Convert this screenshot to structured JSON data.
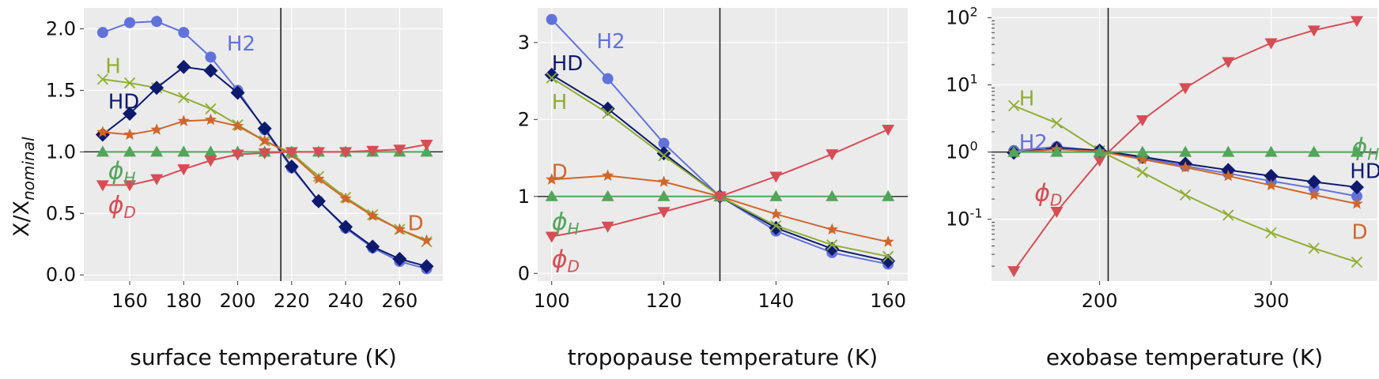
{
  "figure": {
    "ylabel": "X/X",
    "ylabel_sub": "nominal"
  },
  "colors": {
    "H2": "#6272dc",
    "HD": "#0d1a6e",
    "H": "#8fae33",
    "D": "#d0662b",
    "phiH": "#52a55a",
    "phiD": "#d64d56",
    "grid": "#ffffff",
    "bg": "#ebebeb",
    "vline": "#222222"
  },
  "chart_data": [
    {
      "type": "line",
      "xlabel": "surface temperature (K)",
      "ylabel": "X/Xnominal",
      "xlim": [
        143,
        276
      ],
      "ylim": [
        -0.05,
        2.17
      ],
      "xticks": [
        160,
        180,
        200,
        220,
        240,
        260
      ],
      "xticklabels": [
        "160",
        "180",
        "200",
        "220",
        "240",
        "260"
      ],
      "yticks": [
        0.0,
        0.5,
        1.0,
        1.5,
        2.0
      ],
      "yticklabels": [
        "0.0",
        "0.5",
        "1.0",
        "1.5",
        "2.0"
      ],
      "yscale": "linear",
      "reference_x": 216,
      "reference_y": 1.0,
      "grid": true,
      "series": [
        {
          "name": "H2",
          "marker": "circle",
          "x": [
            150,
            160,
            170,
            180,
            190,
            200,
            210,
            220,
            230,
            240,
            250,
            260,
            270
          ],
          "y": [
            1.97,
            2.05,
            2.06,
            1.97,
            1.77,
            1.5,
            1.18,
            0.87,
            0.6,
            0.38,
            0.22,
            0.11,
            0.05
          ]
        },
        {
          "name": "H",
          "marker": "x",
          "x": [
            150,
            160,
            170,
            180,
            190,
            200,
            210,
            220,
            230,
            240,
            250,
            260,
            270
          ],
          "y": [
            1.59,
            1.56,
            1.52,
            1.44,
            1.35,
            1.22,
            1.09,
            0.99,
            0.8,
            0.63,
            0.49,
            0.37,
            0.27
          ]
        },
        {
          "name": "HD",
          "marker": "diamond",
          "x": [
            150,
            160,
            170,
            180,
            190,
            200,
            210,
            220,
            230,
            240,
            250,
            260,
            270
          ],
          "y": [
            1.14,
            1.31,
            1.52,
            1.69,
            1.66,
            1.48,
            1.19,
            0.88,
            0.6,
            0.39,
            0.23,
            0.13,
            0.07
          ]
        },
        {
          "name": "D",
          "marker": "star",
          "x": [
            150,
            160,
            170,
            180,
            190,
            200,
            210,
            220,
            230,
            240,
            250,
            260,
            270
          ],
          "y": [
            1.16,
            1.14,
            1.18,
            1.25,
            1.26,
            1.21,
            1.09,
            0.98,
            0.78,
            0.62,
            0.48,
            0.37,
            0.28
          ]
        },
        {
          "name": "ϕH",
          "marker": "triangle-up",
          "x": [
            150,
            160,
            170,
            180,
            190,
            200,
            210,
            220,
            230,
            240,
            250,
            260,
            270
          ],
          "y": [
            1,
            1,
            1,
            1,
            1,
            1,
            1,
            1,
            1,
            1,
            1,
            1,
            1
          ]
        },
        {
          "name": "ϕD",
          "marker": "triangle-down",
          "x": [
            150,
            160,
            170,
            180,
            190,
            200,
            210,
            220,
            230,
            240,
            250,
            260,
            270
          ],
          "y": [
            0.73,
            0.73,
            0.78,
            0.86,
            0.93,
            0.98,
            0.99,
            1.0,
            1.0,
            1.0,
            1.01,
            1.02,
            1.06
          ]
        }
      ],
      "annotations": [
        {
          "text": "H2",
          "series": "H2",
          "x": 196,
          "y": 1.88
        },
        {
          "text": "H",
          "series": "H",
          "x": 151,
          "y": 1.7
        },
        {
          "text": "HD",
          "series": "HD",
          "x": 152,
          "y": 1.41
        },
        {
          "text": "ϕH",
          "series": "ϕH",
          "x": 152,
          "y": 0.84
        },
        {
          "text": "ϕD",
          "series": "ϕD",
          "x": 152,
          "y": 0.56
        },
        {
          "text": "D",
          "series": "D",
          "x": 263,
          "y": 0.42
        }
      ]
    },
    {
      "type": "line",
      "xlabel": "tropopause temperature (K)",
      "ylabel": "",
      "xlim": [
        97.5,
        163.5
      ],
      "ylim": [
        -0.1,
        3.45
      ],
      "xticks": [
        100,
        120,
        140,
        160
      ],
      "xticklabels": [
        "100",
        "120",
        "140",
        "160"
      ],
      "yticks": [
        0,
        1,
        2,
        3
      ],
      "yticklabels": [
        "0",
        "1",
        "2",
        "3"
      ],
      "yscale": "linear",
      "reference_x": 130,
      "reference_y": 1.0,
      "grid": true,
      "series": [
        {
          "name": "H2",
          "marker": "circle",
          "x": [
            100,
            110,
            120,
            130,
            140,
            150,
            160
          ],
          "y": [
            3.3,
            2.53,
            1.69,
            1.0,
            0.55,
            0.27,
            0.12
          ]
        },
        {
          "name": "HD",
          "marker": "diamond",
          "x": [
            100,
            110,
            120,
            130,
            140,
            150,
            160
          ],
          "y": [
            2.58,
            2.14,
            1.56,
            1.0,
            0.59,
            0.32,
            0.16
          ]
        },
        {
          "name": "H",
          "marker": "x",
          "x": [
            100,
            110,
            120,
            130,
            140,
            150,
            160
          ],
          "y": [
            2.54,
            2.08,
            1.53,
            1.0,
            0.62,
            0.37,
            0.22
          ]
        },
        {
          "name": "D",
          "marker": "star",
          "x": [
            100,
            110,
            120,
            130,
            140,
            150,
            160
          ],
          "y": [
            1.22,
            1.27,
            1.19,
            1.0,
            0.77,
            0.57,
            0.41
          ]
        },
        {
          "name": "ϕH",
          "marker": "triangle-up",
          "x": [
            100,
            110,
            120,
            130,
            140,
            150,
            160
          ],
          "y": [
            1,
            1,
            1,
            1,
            1,
            1,
            1
          ]
        },
        {
          "name": "ϕD",
          "marker": "triangle-down",
          "x": [
            100,
            110,
            120,
            130,
            140,
            150,
            160
          ],
          "y": [
            0.48,
            0.61,
            0.8,
            1.0,
            1.26,
            1.55,
            1.87
          ]
        }
      ],
      "annotations": [
        {
          "text": "H2",
          "series": "H2",
          "x": 108,
          "y": 3.02
        },
        {
          "text": "HD",
          "series": "HD",
          "x": 100,
          "y": 2.73
        },
        {
          "text": "H",
          "series": "H",
          "x": 100,
          "y": 2.23
        },
        {
          "text": "D",
          "series": "D",
          "x": 100,
          "y": 1.32
        },
        {
          "text": "ϕH",
          "series": "ϕH",
          "x": 100,
          "y": 0.66
        },
        {
          "text": "ϕD",
          "series": "ϕD",
          "x": 100,
          "y": 0.17
        }
      ]
    },
    {
      "type": "line",
      "xlabel": "exobase temperature (K)",
      "ylabel": "",
      "xlim": [
        137,
        362
      ],
      "ylim": [
        0.012,
        140
      ],
      "xticks": [
        200,
        300
      ],
      "xticklabels": [
        "200",
        "300"
      ],
      "yticks": [
        0.1,
        1,
        10,
        100
      ],
      "yticklabels": [
        "10",
        "10",
        "10",
        "10"
      ],
      "yticklabel_exponents": [
        "-1",
        "0",
        "1",
        "2"
      ],
      "yscale": "log",
      "reference_x": 205,
      "reference_y": 1.0,
      "grid": true,
      "series": [
        {
          "name": "ϕD",
          "marker": "triangle-down",
          "x": [
            150,
            175,
            200,
            225,
            250,
            275,
            300,
            325,
            350
          ],
          "y": [
            0.017,
            0.13,
            0.75,
            3.0,
            9.0,
            22,
            42,
            65,
            90
          ]
        },
        {
          "name": "H",
          "marker": "x",
          "x": [
            150,
            175,
            200,
            225,
            250,
            275,
            300,
            325,
            350
          ],
          "y": [
            4.9,
            2.7,
            1.05,
            0.5,
            0.23,
            0.115,
            0.063,
            0.037,
            0.023
          ]
        },
        {
          "name": "H2",
          "marker": "circle",
          "x": [
            150,
            175,
            200,
            225,
            250,
            275,
            300,
            325,
            350
          ],
          "y": [
            1.05,
            1.2,
            1.05,
            0.82,
            0.62,
            0.48,
            0.37,
            0.29,
            0.22
          ]
        },
        {
          "name": "HD",
          "marker": "diamond",
          "x": [
            150,
            175,
            200,
            225,
            250,
            275,
            300,
            325,
            350
          ],
          "y": [
            0.98,
            1.15,
            1.05,
            0.85,
            0.67,
            0.54,
            0.44,
            0.36,
            0.3
          ]
        },
        {
          "name": "D",
          "marker": "star",
          "x": [
            150,
            175,
            200,
            225,
            250,
            275,
            300,
            325,
            350
          ],
          "y": [
            0.98,
            1.1,
            1.02,
            0.78,
            0.59,
            0.44,
            0.32,
            0.23,
            0.17
          ]
        },
        {
          "name": "ϕH",
          "marker": "triangle-up",
          "x": [
            150,
            175,
            200,
            225,
            250,
            275,
            300,
            325,
            350
          ],
          "y": [
            1,
            1,
            1,
            1,
            1,
            1,
            1,
            1,
            1
          ]
        }
      ],
      "annotations": [
        {
          "text": "H",
          "series": "H",
          "x": 153,
          "y": 6.3
        },
        {
          "text": "H2",
          "series": "H2",
          "x": 153,
          "y": 1.4
        },
        {
          "text": "ϕD",
          "series": "ϕD",
          "x": 162,
          "y": 0.24
        },
        {
          "text": "ϕH",
          "series": "ϕH",
          "x": 347,
          "y": 1.15
        },
        {
          "text": "HD",
          "series": "HD",
          "x": 346,
          "y": 0.52
        },
        {
          "text": "D",
          "series": "D",
          "x": 347,
          "y": 0.065
        }
      ]
    }
  ]
}
